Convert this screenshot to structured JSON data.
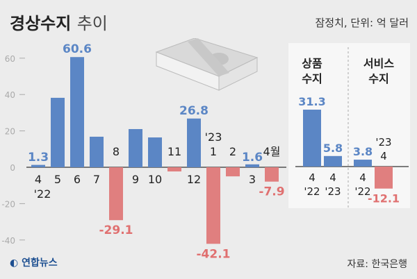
{
  "header": {
    "title_bold": "경상수지",
    "title_light": "추이",
    "unit": "잠정치, 단위: 억 달러"
  },
  "source": "자료: 한국은행",
  "logo": "연합뉴스",
  "colors": {
    "positive": "#5b86c5",
    "negative": "#e07f7f",
    "label_pos": "#5b86c5",
    "label_neg": "#e07070"
  },
  "chart_data": [
    {
      "type": "bar",
      "title": "경상수지 추이",
      "ylim": [
        -45,
        65
      ],
      "yticks": [
        60,
        40,
        20,
        0,
        -20,
        -40
      ],
      "categories": [
        "4",
        "5",
        "6",
        "7",
        "8",
        "9",
        "10",
        "11",
        "12",
        "1",
        "2",
        "3",
        "4월"
      ],
      "year_labels": {
        "0": "'22",
        "9": "'23"
      },
      "values": [
        1.3,
        38.2,
        60.6,
        16.8,
        -29.1,
        21.0,
        16.4,
        -2.3,
        26.8,
        -42.1,
        -5.0,
        1.6,
        -7.9
      ],
      "data_labels": {
        "0": "1.3",
        "2": "60.6",
        "4": "-29.1",
        "8": "26.8",
        "9": "-42.1",
        "11": "1.6",
        "12": "-7.9"
      }
    },
    {
      "type": "bar",
      "title": "상품 수지",
      "categories": [
        "4 '22",
        "4 '23"
      ],
      "values": [
        31.3,
        5.8
      ],
      "data_labels": [
        "31.3",
        "5.8"
      ]
    },
    {
      "type": "bar",
      "title": "서비스 수지",
      "categories": [
        "4 '22",
        "'23 4"
      ],
      "values": [
        3.8,
        -12.1
      ],
      "data_labels": [
        "3.8",
        "-12.1"
      ]
    }
  ]
}
